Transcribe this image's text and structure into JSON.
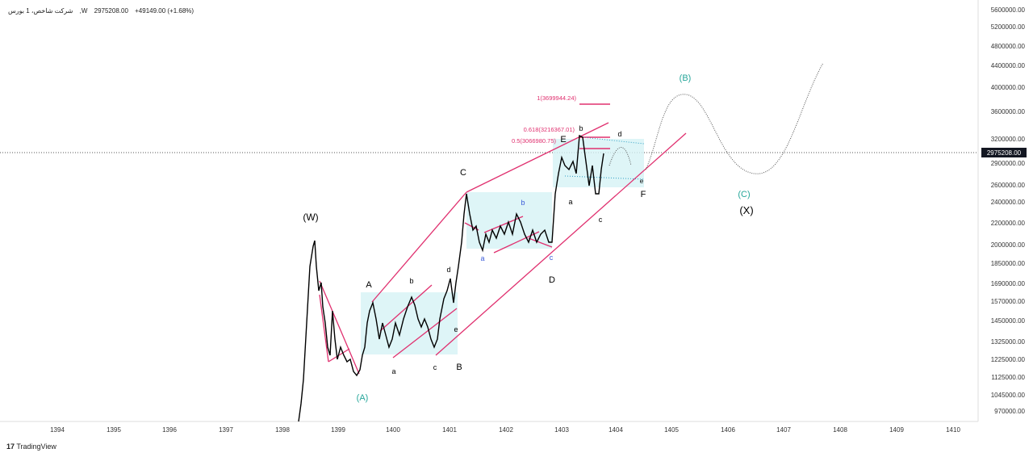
{
  "header": {
    "symbol": "شرکت شاخص، 1",
    "exchange": "بورس ,W",
    "price": "2975208.00",
    "change": "+49149.00 (+1.68%)"
  },
  "brand": "TradingView",
  "colors": {
    "accent": "#e0306f",
    "teal": "#26a69a",
    "box": "#d6f3f5",
    "label_bg": "#131722"
  },
  "chart_data": {
    "type": "line",
    "title": "شرکت شاخص، 1 — بورس",
    "last_price": "2975208.00",
    "yticks": [
      "5600000.00",
      "5200000.00",
      "4800000.00",
      "4400000.00",
      "4000000.00",
      "3600000.00",
      "3200000.00",
      "2900000.00",
      "2600000.00",
      "2400000.00",
      "2200000.00",
      "2000000.00",
      "1850000.00",
      "1690000.00",
      "1570000.00",
      "1450000.00",
      "1325000.00",
      "1225000.00",
      "1125000.00",
      "1045000.00",
      "970000.00"
    ],
    "xticks": [
      "1394",
      "1395",
      "1396",
      "1397",
      "1398",
      "1399",
      "1400",
      "1401",
      "1402",
      "1403",
      "1404",
      "1405",
      "1406",
      "1407",
      "1408",
      "1409",
      "1410"
    ],
    "fib_labels": [
      "1(3699944.24)",
      "0.618(3216367.01)",
      "0.5(3066980.75)"
    ],
    "wave_labels": [
      "(W)",
      "(A)",
      "A",
      "a",
      "b",
      "c",
      "d",
      "e",
      "B",
      "C",
      "a",
      "b",
      "c",
      "D",
      "E",
      "a",
      "b",
      "c",
      "d",
      "e",
      "F",
      "(B)",
      "(C)",
      "(X)"
    ]
  }
}
